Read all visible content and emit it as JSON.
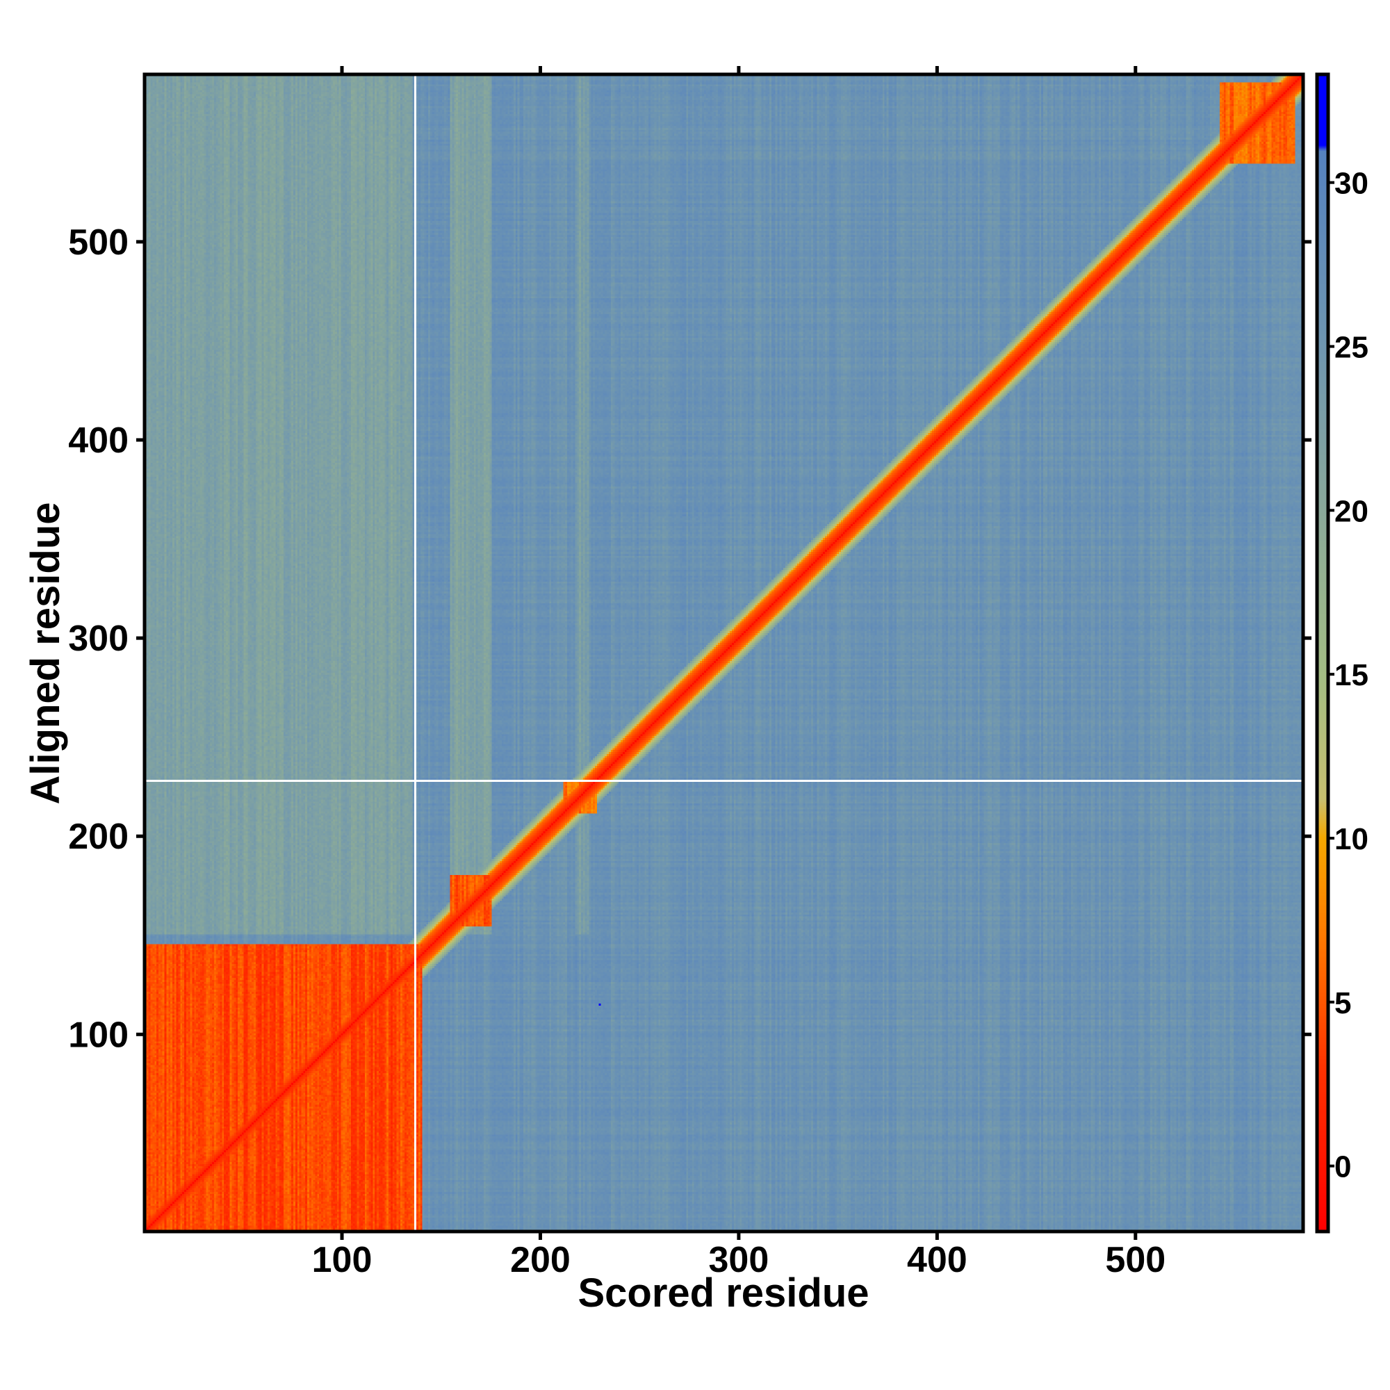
{
  "chart_data": {
    "type": "heatmap",
    "title": "",
    "xlabel": "Scored residue",
    "ylabel": "Aligned residue",
    "n_residues": 584,
    "xlim": [
      0.5,
      584.5
    ],
    "ylim": [
      0.5,
      584.5
    ],
    "x_ticks": [
      100,
      200,
      300,
      400,
      500
    ],
    "y_ticks": [
      100,
      200,
      300,
      400,
      500
    ],
    "colorbar": {
      "ticks": [
        0,
        5,
        10,
        15,
        20,
        25,
        30
      ],
      "range": [
        -2,
        33.3
      ],
      "stops": [
        {
          "v": -2,
          "c": "#ff0000"
        },
        {
          "v": 3,
          "c": "#ff3300"
        },
        {
          "v": 7,
          "c": "#ff7a00"
        },
        {
          "v": 10,
          "c": "#f5a800"
        },
        {
          "v": 11.2,
          "c": "#c8c070"
        },
        {
          "v": 15,
          "c": "#a3bd84"
        },
        {
          "v": 20,
          "c": "#8aa99a"
        },
        {
          "v": 25,
          "c": "#6f96b0"
        },
        {
          "v": 31,
          "c": "#5582c0"
        },
        {
          "v": 31.1,
          "c": "#0000ff"
        },
        {
          "v": 33.3,
          "c": "#0000ff"
        }
      ]
    },
    "background_value": 26,
    "diagonal": {
      "value": 1,
      "halfwidth_residues": 6
    },
    "low_error_blocks": [
      {
        "x": [
          1,
          140
        ],
        "y": [
          1,
          145
        ],
        "value": 3
      },
      {
        "x": [
          155,
          175
        ],
        "y": [
          155,
          180
        ],
        "value": 4
      },
      {
        "x": [
          212,
          228
        ],
        "y": [
          212,
          228
        ],
        "value": 6
      },
      {
        "x": [
          543,
          580
        ],
        "y": [
          540,
          580
        ],
        "value": 5
      }
    ],
    "medium_error_bands": [
      {
        "axis": "x",
        "range": [
          1,
          135
        ],
        "value": 21
      },
      {
        "axis": "x",
        "range": [
          155,
          175
        ],
        "value": 21
      },
      {
        "axis": "x",
        "range": [
          218,
          224
        ],
        "value": 22
      }
    ],
    "gap_lines": {
      "x": 137,
      "y": 228
    },
    "outlier_point": {
      "x": 230,
      "y": 115,
      "value": 33
    }
  }
}
